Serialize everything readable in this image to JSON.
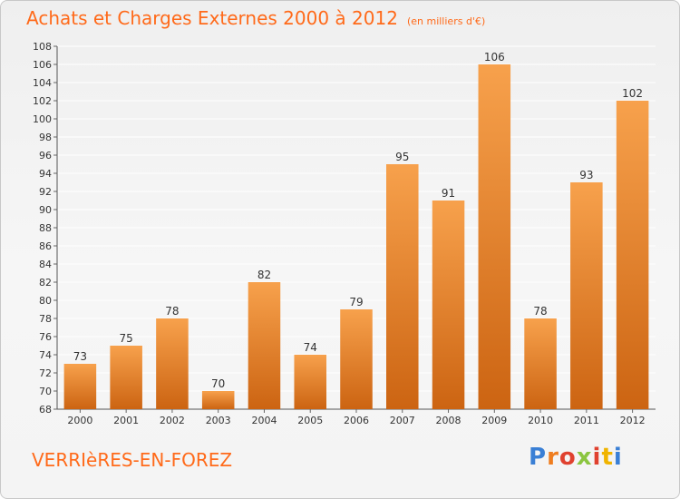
{
  "header": {
    "title": "Achats et Charges Externes 2000 à 2012",
    "subtitle": "(en milliers d'€)"
  },
  "footer": {
    "place": "VERRIèRES-EN-FOREZ",
    "logo": {
      "text": "Proxiti",
      "letter_colors": [
        "#3a7fd5",
        "#ef7d1f",
        "#e0412f",
        "#8bc540",
        "#e0412f",
        "#f0b400",
        "#3a7fd5"
      ]
    }
  },
  "colors": {
    "bar_light": "#f7a14c",
    "bar_dark": "#cc6412",
    "title": "#ff6a1a",
    "grid": "#ffffff"
  },
  "chart_data": {
    "type": "bar",
    "categories": [
      "2000",
      "2001",
      "2002",
      "2003",
      "2004",
      "2005",
      "2006",
      "2007",
      "2008",
      "2009",
      "2010",
      "2011",
      "2012"
    ],
    "values": [
      73,
      75,
      78,
      70,
      82,
      74,
      79,
      95,
      91,
      106,
      78,
      93,
      102
    ],
    "ylim": [
      68,
      108
    ],
    "yticks": [
      68,
      70,
      72,
      74,
      76,
      78,
      80,
      82,
      84,
      86,
      88,
      90,
      92,
      94,
      96,
      98,
      100,
      102,
      104,
      106,
      108
    ],
    "grid": true,
    "title": "Achats et Charges Externes 2000 à 2012",
    "xlabel": "",
    "ylabel": ""
  }
}
